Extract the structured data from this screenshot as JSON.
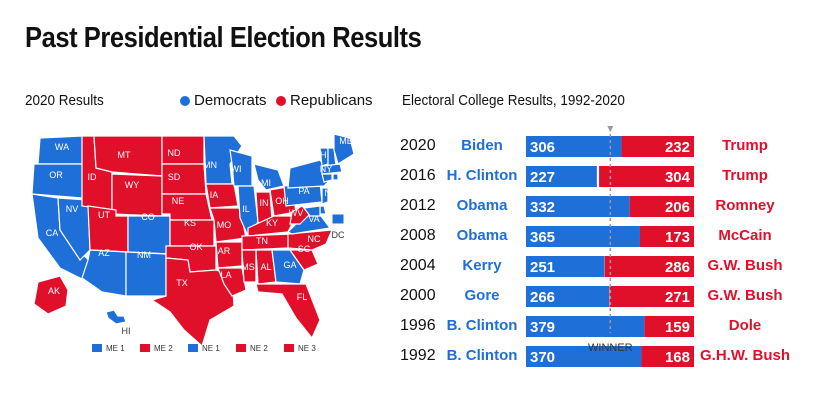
{
  "page": {
    "title": "Past Presidential Election Results"
  },
  "colors": {
    "democrat": "#1f6fd8",
    "republican": "#e0102b"
  },
  "map": {
    "subtitle": "2020 Results",
    "legend_dem": "Democrats",
    "legend_rep": "Republicans",
    "states": [
      {
        "abbr": "WA",
        "party": "D"
      },
      {
        "abbr": "OR",
        "party": "D"
      },
      {
        "abbr": "CA",
        "party": "D"
      },
      {
        "abbr": "NV",
        "party": "D"
      },
      {
        "abbr": "ID",
        "party": "R"
      },
      {
        "abbr": "MT",
        "party": "R"
      },
      {
        "abbr": "WY",
        "party": "R"
      },
      {
        "abbr": "UT",
        "party": "R"
      },
      {
        "abbr": "CO",
        "party": "D"
      },
      {
        "abbr": "AZ",
        "party": "D"
      },
      {
        "abbr": "NM",
        "party": "D"
      },
      {
        "abbr": "ND",
        "party": "R"
      },
      {
        "abbr": "SD",
        "party": "R"
      },
      {
        "abbr": "NE",
        "party": "R"
      },
      {
        "abbr": "KS",
        "party": "R"
      },
      {
        "abbr": "OK",
        "party": "R"
      },
      {
        "abbr": "TX",
        "party": "R"
      },
      {
        "abbr": "MN",
        "party": "D"
      },
      {
        "abbr": "IA",
        "party": "R"
      },
      {
        "abbr": "MO",
        "party": "R"
      },
      {
        "abbr": "AR",
        "party": "R"
      },
      {
        "abbr": "LA",
        "party": "R"
      },
      {
        "abbr": "WI",
        "party": "D"
      },
      {
        "abbr": "IL",
        "party": "D"
      },
      {
        "abbr": "MI",
        "party": "D"
      },
      {
        "abbr": "IN",
        "party": "R"
      },
      {
        "abbr": "OH",
        "party": "R"
      },
      {
        "abbr": "KY",
        "party": "R"
      },
      {
        "abbr": "TN",
        "party": "R"
      },
      {
        "abbr": "MS",
        "party": "R"
      },
      {
        "abbr": "AL",
        "party": "R"
      },
      {
        "abbr": "GA",
        "party": "D"
      },
      {
        "abbr": "FL",
        "party": "R"
      },
      {
        "abbr": "SC",
        "party": "R"
      },
      {
        "abbr": "NC",
        "party": "R"
      },
      {
        "abbr": "VA",
        "party": "D"
      },
      {
        "abbr": "WV",
        "party": "R"
      },
      {
        "abbr": "PA",
        "party": "D"
      },
      {
        "abbr": "NY",
        "party": "D"
      },
      {
        "abbr": "VT",
        "party": "D"
      },
      {
        "abbr": "NH",
        "party": "D"
      },
      {
        "abbr": "ME",
        "party": "D"
      },
      {
        "abbr": "MA",
        "party": "D"
      },
      {
        "abbr": "CT",
        "party": "D"
      },
      {
        "abbr": "NJ",
        "party": "D"
      },
      {
        "abbr": "DE",
        "party": "D"
      },
      {
        "abbr": "MD",
        "party": "D"
      },
      {
        "abbr": "RI",
        "party": "D"
      },
      {
        "abbr": "DC",
        "party": "D"
      },
      {
        "abbr": "AK",
        "party": "R"
      },
      {
        "abbr": "HI",
        "party": "D"
      }
    ],
    "districts": [
      {
        "label": "ME 1",
        "party": "D"
      },
      {
        "label": "ME 2",
        "party": "R"
      },
      {
        "label": "NE 1",
        "party": "D"
      },
      {
        "label": "NE 2",
        "party": "R"
      },
      {
        "label": "NE 3",
        "party": "R"
      }
    ]
  },
  "chart_data": {
    "type": "bar",
    "title": "Electoral College Results, 1992-2020",
    "winner_label": "WINNER",
    "winner_threshold": 270,
    "total": 538,
    "categories": [
      "2020",
      "2016",
      "2012",
      "2008",
      "2004",
      "2000",
      "1996",
      "1992"
    ],
    "series": [
      {
        "name": "Democrats",
        "candidates": [
          "Biden",
          "H. Clinton",
          "Obama",
          "Obama",
          "Kerry",
          "Gore",
          "B. Clinton",
          "B. Clinton"
        ],
        "values": [
          306,
          227,
          332,
          365,
          251,
          266,
          379,
          370
        ]
      },
      {
        "name": "Republicans",
        "candidates": [
          "Trump",
          "Trump",
          "Romney",
          "McCain",
          "G.W. Bush",
          "G.W. Bush",
          "Dole",
          "G.H.W. Bush"
        ],
        "values": [
          232,
          304,
          206,
          173,
          286,
          271,
          159,
          168
        ]
      }
    ]
  }
}
